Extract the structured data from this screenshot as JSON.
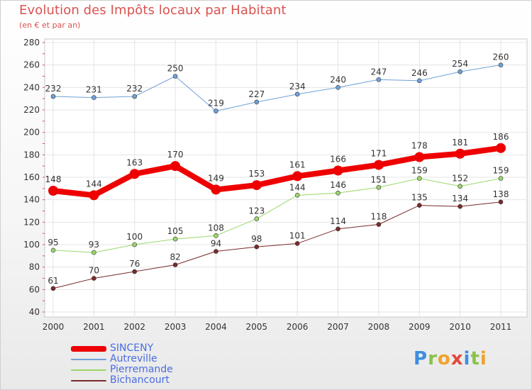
{
  "title": "Evolution des Impôts locaux par Habitant",
  "subtitle": "(en € et par an)",
  "logo": {
    "text": "Proxiti",
    "letters": [
      {
        "ch": "P",
        "color": "#3d8fe0"
      },
      {
        "ch": "r",
        "color": "#8ac24a"
      },
      {
        "ch": "o",
        "color": "#f0a22e"
      },
      {
        "ch": "x",
        "color": "#e04a3c"
      },
      {
        "ch": "i",
        "color": "#3d8fe0"
      },
      {
        "ch": "t",
        "color": "#8ac24a"
      },
      {
        "ch": "i",
        "color": "#f0a22e"
      }
    ]
  },
  "chart_data": {
    "type": "line",
    "x": [
      "2000",
      "2001",
      "2002",
      "2003",
      "2004",
      "2005",
      "2006",
      "2007",
      "2008",
      "2009",
      "2010",
      "2011"
    ],
    "ylim": [
      40,
      280
    ],
    "yticks": [
      40,
      60,
      80,
      100,
      120,
      140,
      160,
      180,
      200,
      220,
      240,
      260,
      280
    ],
    "grid": true,
    "legend_position": "bottom-left",
    "series": [
      {
        "name": "SINCENY",
        "color": "#ee0000",
        "width": 8,
        "dot": 7,
        "values": [
          148,
          144,
          163,
          170,
          149,
          153,
          161,
          166,
          171,
          178,
          181,
          186
        ]
      },
      {
        "name": "Autreville",
        "color": "#6fa1d8",
        "width": 1,
        "dot": 3,
        "values": [
          232,
          231,
          232,
          250,
          219,
          227,
          234,
          240,
          247,
          246,
          254,
          260
        ]
      },
      {
        "name": "Pierremande",
        "color": "#9bd86b",
        "width": 1,
        "dot": 3,
        "values": [
          95,
          93,
          100,
          105,
          108,
          123,
          144,
          146,
          151,
          159,
          152,
          159
        ]
      },
      {
        "name": "Bichancourt",
        "color": "#7a2a2a",
        "width": 1,
        "dot": 3,
        "values": [
          61,
          70,
          76,
          82,
          94,
          98,
          101,
          114,
          118,
          135,
          134,
          138
        ]
      }
    ]
  }
}
